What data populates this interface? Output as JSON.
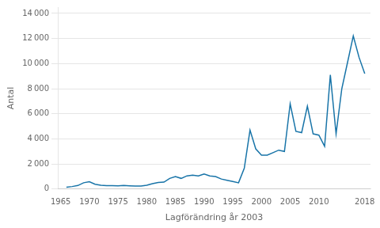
{
  "chart_data": {
    "type": "line",
    "x": [
      1966,
      1967,
      1968,
      1969,
      1970,
      1971,
      1972,
      1973,
      1974,
      1975,
      1976,
      1977,
      1978,
      1979,
      1980,
      1981,
      1982,
      1983,
      1984,
      1985,
      1986,
      1987,
      1988,
      1989,
      1990,
      1991,
      1992,
      1993,
      1994,
      1995,
      1996,
      1997,
      1998,
      1999,
      2000,
      2001,
      2002,
      2003,
      2004,
      2005,
      2006,
      2007,
      2008,
      2009,
      2010,
      2011,
      2012,
      2013,
      2014,
      2015,
      2016,
      2017,
      2018
    ],
    "values": [
      150,
      200,
      280,
      500,
      580,
      380,
      300,
      270,
      270,
      250,
      280,
      260,
      240,
      240,
      300,
      430,
      520,
      550,
      850,
      1000,
      850,
      1050,
      1100,
      1050,
      1200,
      1050,
      1000,
      800,
      700,
      600,
      500,
      1650,
      4700,
      3200,
      2700,
      2700,
      2900,
      3100,
      3000,
      6800,
      4600,
      4500,
      6600,
      4400,
      4300,
      3400,
      9100,
      4400,
      8000,
      10100,
      12200,
      10500,
      9200
    ],
    "color": "#1874a8",
    "ylabel": "Antal",
    "xlabel": "Lagförändring år 2003",
    "xlim": [
      1964.5,
      2019
    ],
    "xticks": [
      1965,
      1970,
      1975,
      1980,
      1985,
      1990,
      1995,
      2000,
      2005,
      2010,
      2018
    ],
    "ylim": [
      0,
      14500
    ],
    "yticks": [
      0,
      {
        "value": 2000,
        "label": "2 000"
      },
      {
        "value": 4000,
        "label": "4 000"
      },
      {
        "value": 6000,
        "label": "6 000"
      },
      {
        "value": 8000,
        "label": "8 000"
      },
      {
        "value": 10000,
        "label": "10 000"
      },
      {
        "value": 12000,
        "label": "12 000"
      },
      {
        "value": 14000,
        "label": "14 000"
      }
    ],
    "grid": "y"
  }
}
